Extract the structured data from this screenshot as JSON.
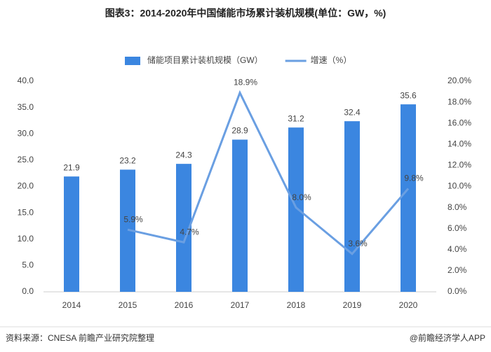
{
  "chart_data": {
    "type": "bar_line",
    "title": "图表3：2014-2020年中国储能市场累计装机规模(单位：GW，%)",
    "categories": [
      "2014",
      "2015",
      "2016",
      "2017",
      "2018",
      "2019",
      "2020"
    ],
    "series": [
      {
        "name": "储能项目累计装机规模（GW）",
        "color": "#3b86e0",
        "type": "bar",
        "values": [
          21.9,
          23.2,
          24.3,
          28.9,
          31.2,
          32.4,
          35.6
        ]
      },
      {
        "name": "增速（%）",
        "color": "#6a9fe2",
        "type": "line",
        "axis": "y2",
        "values": [
          null,
          5.9,
          4.7,
          18.9,
          8.0,
          3.6,
          9.8
        ],
        "value_labels": [
          null,
          "5.9%",
          "4.7%",
          "18.9%",
          "8.0%",
          "3.6%",
          "9.8%"
        ]
      }
    ],
    "ylim": [
      0,
      40
    ],
    "yticks": [
      {
        "value": 0,
        "label": "0.0"
      },
      {
        "value": 5,
        "label": "5.0"
      },
      {
        "value": 10,
        "label": "10.0"
      },
      {
        "value": 15,
        "label": "15.0"
      },
      {
        "value": 20,
        "label": "20.0"
      },
      {
        "value": 25,
        "label": "25.0"
      },
      {
        "value": 30,
        "label": "30.0"
      },
      {
        "value": 35,
        "label": "35.0"
      },
      {
        "value": 40,
        "label": "40.0"
      }
    ],
    "y2lim": [
      0,
      20
    ],
    "y2ticks": [
      {
        "value": 0,
        "label": "0.0%"
      },
      {
        "value": 2,
        "label": "2.0%"
      },
      {
        "value": 4,
        "label": "4.0%"
      },
      {
        "value": 6,
        "label": "6.0%"
      },
      {
        "value": 8,
        "label": "8.0%"
      },
      {
        "value": 10,
        "label": "10.0%"
      },
      {
        "value": 12,
        "label": "12.0%"
      },
      {
        "value": 14,
        "label": "14.0%"
      },
      {
        "value": 16,
        "label": "16.0%"
      },
      {
        "value": 18,
        "label": "18.0%"
      },
      {
        "value": 20,
        "label": "20.0%"
      }
    ],
    "legend": "top",
    "source": "资料来源：CNESA 前瞻产业研究院整理",
    "brand": "@前瞻经济学人APP"
  }
}
